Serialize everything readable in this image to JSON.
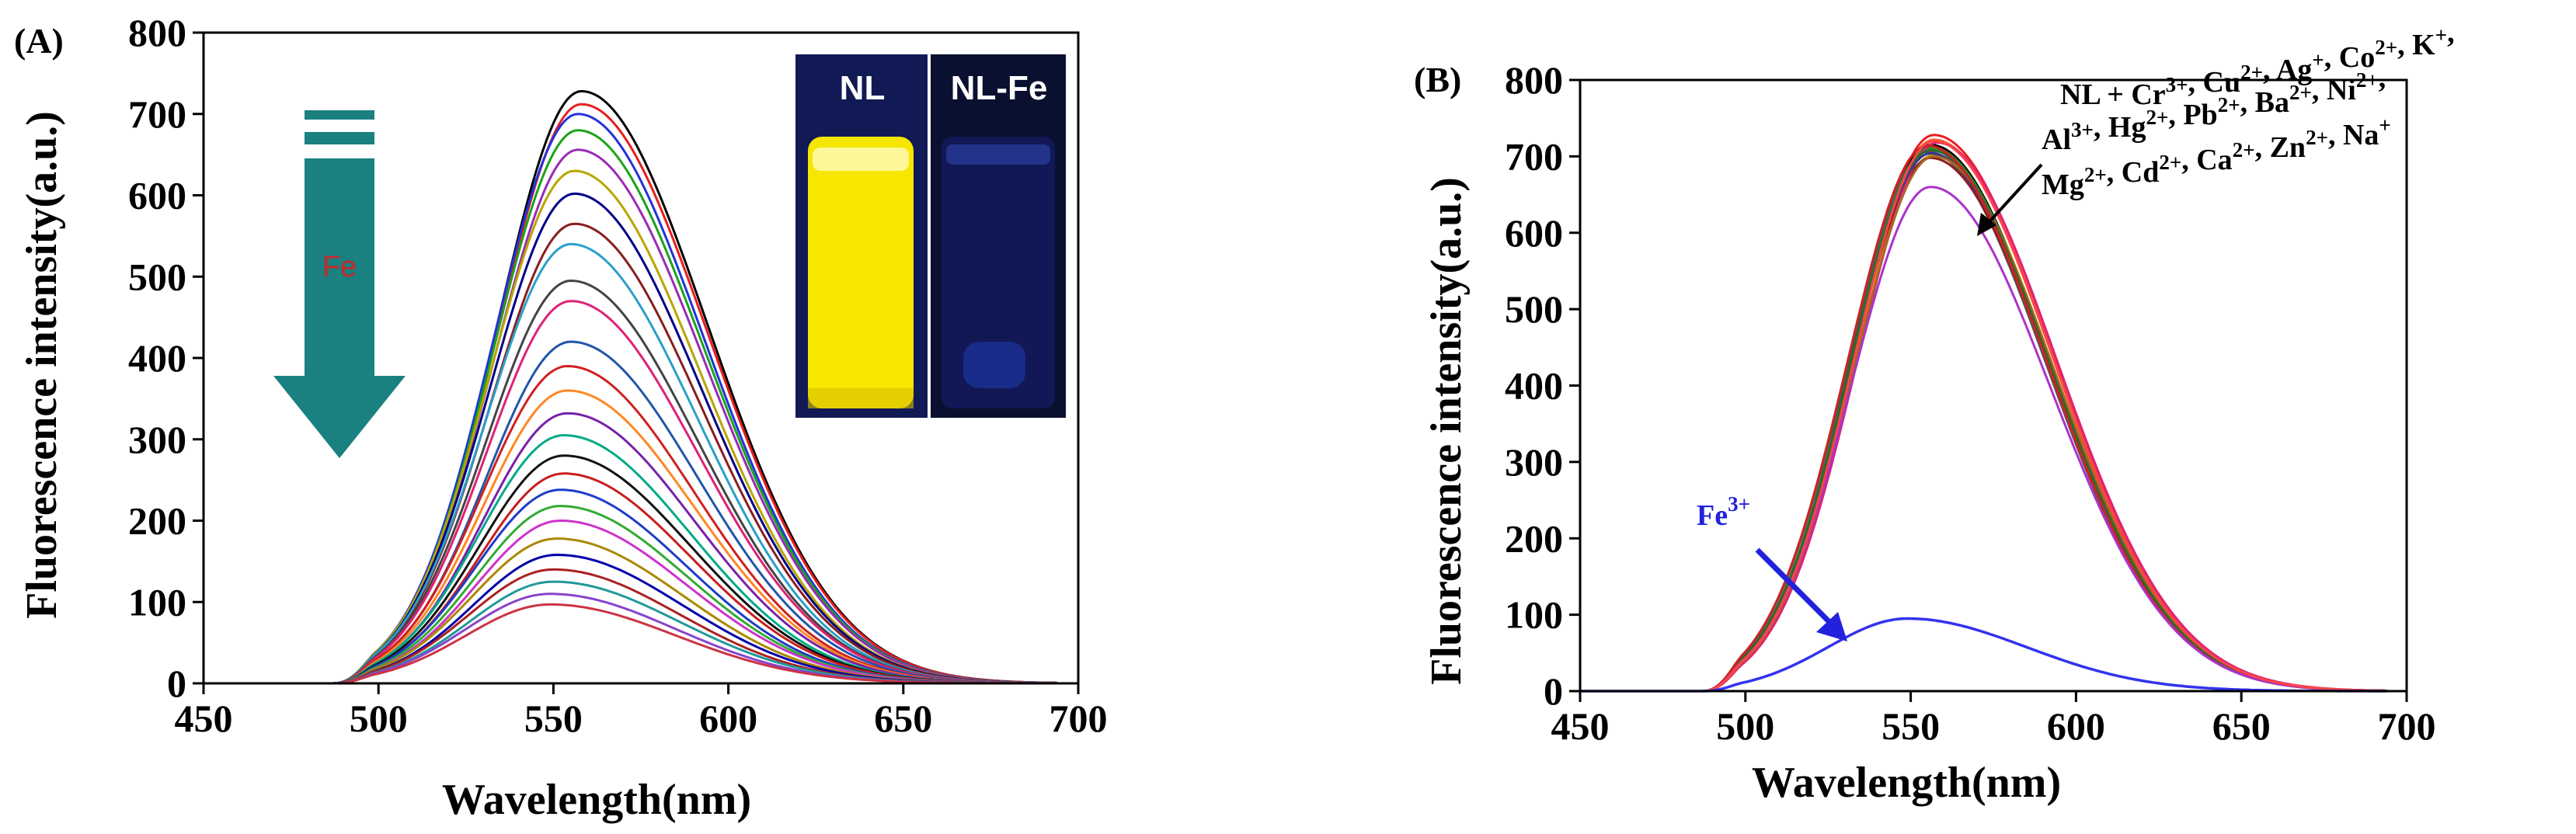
{
  "colors": {
    "arrow_teal": "#1a8080",
    "fe_line": "#3333ee",
    "fe_label": "#2222dd",
    "fe_arrow_text": "#c82828",
    "inset_left_bg": "#f6e600",
    "inset_right_bg": "#0a1030"
  },
  "chart_data": [
    {
      "type": "line",
      "panel_label": "(A)",
      "xlabel": "Wavelength(nm)",
      "ylabel": "Fluorescence intensity(a.u.)",
      "xlim": [
        450,
        700
      ],
      "ylim": [
        0,
        800
      ],
      "xticks": [
        450,
        500,
        550,
        600,
        650,
        700
      ],
      "yticks": [
        0,
        100,
        200,
        300,
        400,
        500,
        600,
        700,
        800
      ],
      "arrow_label": "Fe",
      "inset_labels": [
        "NL",
        "NL-Fe"
      ],
      "inset_icons": [
        "vial-yellow-fluorescence",
        "vial-quenched-blue"
      ],
      "series_shape": {
        "onset_nm": 487,
        "end_nm": 694
      },
      "peak_nm": [
        558,
        558,
        557,
        557,
        557,
        556,
        556,
        556,
        555,
        555,
        555,
        555,
        554,
        554,
        554,
        553,
        553,
        553,
        552,
        552,
        552,
        551,
        551,
        550,
        550,
        549,
        549
      ],
      "peak_values": [
        728,
        712,
        700,
        680,
        656,
        630,
        602,
        565,
        540,
        495,
        470,
        420,
        390,
        360,
        332,
        305,
        280,
        258,
        238,
        218,
        200,
        178,
        158,
        140,
        125,
        110,
        97
      ],
      "series_colors": [
        "#000000",
        "#e81e1e",
        "#2233dd",
        "#1aa31a",
        "#9b2bb5",
        "#b8a600",
        "#000088",
        "#8a1e1e",
        "#2aa0c8",
        "#444444",
        "#dd2277",
        "#2255aa",
        "#d02020",
        "#ff8822",
        "#7722aa",
        "#00aa88",
        "#111111",
        "#c81e1e",
        "#1e3cc8",
        "#33aa33",
        "#cc33cc",
        "#aa8800",
        "#0000aa",
        "#aa2222",
        "#229999",
        "#8844cc",
        "#cc3344"
      ]
    },
    {
      "type": "line",
      "panel_label": "(B)",
      "xlabel": "Wavelength(nm)",
      "ylabel": "Fluorescence intensity(a.u.)",
      "xlim": [
        450,
        700
      ],
      "ylim": [
        0,
        800
      ],
      "xticks": [
        450,
        500,
        550,
        600,
        650,
        700
      ],
      "yticks": [
        0,
        100,
        200,
        300,
        400,
        500,
        600,
        700,
        800
      ],
      "series_shape": {
        "onset_nm": 487,
        "end_nm": 694
      },
      "other_peak_nm": [
        557,
        557,
        556,
        556,
        555,
        557,
        556,
        556,
        558,
        556,
        557,
        556,
        555,
        556,
        557
      ],
      "other_peak_values": [
        728,
        722,
        715,
        710,
        706,
        702,
        698,
        712,
        718,
        704,
        700,
        708,
        714,
        660,
        720
      ],
      "other_colors": [
        "#e81e1e",
        "#ff6633",
        "#000000",
        "#1aa31a",
        "#555555",
        "#b8a600",
        "#8a1e1e",
        "#2a8a2a",
        "#dd2277",
        "#333399",
        "#aa6622",
        "#336633",
        "#cc2222",
        "#aa33cc",
        "#ff4444"
      ],
      "fe_series": {
        "name": "Fe3+",
        "peak_nm": 549,
        "peak_value": 95
      },
      "fe_label": {
        "base": "Fe",
        "sup": "3+"
      },
      "annotation_lines": [
        [
          {
            "t": "NL + Cr"
          },
          {
            "t": "3+",
            "sup": true
          },
          {
            "t": ", Cu"
          },
          {
            "t": "2+",
            "sup": true
          },
          {
            "t": ", Ag"
          },
          {
            "t": "+",
            "sup": true
          },
          {
            "t": ", Co"
          },
          {
            "t": "2+",
            "sup": true
          },
          {
            "t": ", K"
          },
          {
            "t": "+",
            "sup": true
          },
          {
            "t": ","
          }
        ],
        [
          {
            "t": "Al"
          },
          {
            "t": "3+",
            "sup": true
          },
          {
            "t": ", Hg"
          },
          {
            "t": "2+",
            "sup": true
          },
          {
            "t": ", Pb"
          },
          {
            "t": "2+",
            "sup": true
          },
          {
            "t": ", Ba"
          },
          {
            "t": "2+",
            "sup": true
          },
          {
            "t": ", Ni"
          },
          {
            "t": "2+",
            "sup": true
          },
          {
            "t": ","
          }
        ],
        [
          {
            "t": "Mg"
          },
          {
            "t": "2+",
            "sup": true
          },
          {
            "t": ", Cd"
          },
          {
            "t": "2+",
            "sup": true
          },
          {
            "t": ", Ca"
          },
          {
            "t": "2+",
            "sup": true
          },
          {
            "t": ", Zn"
          },
          {
            "t": "2+",
            "sup": true
          },
          {
            "t": ", Na"
          },
          {
            "t": "+",
            "sup": true
          }
        ]
      ]
    }
  ]
}
